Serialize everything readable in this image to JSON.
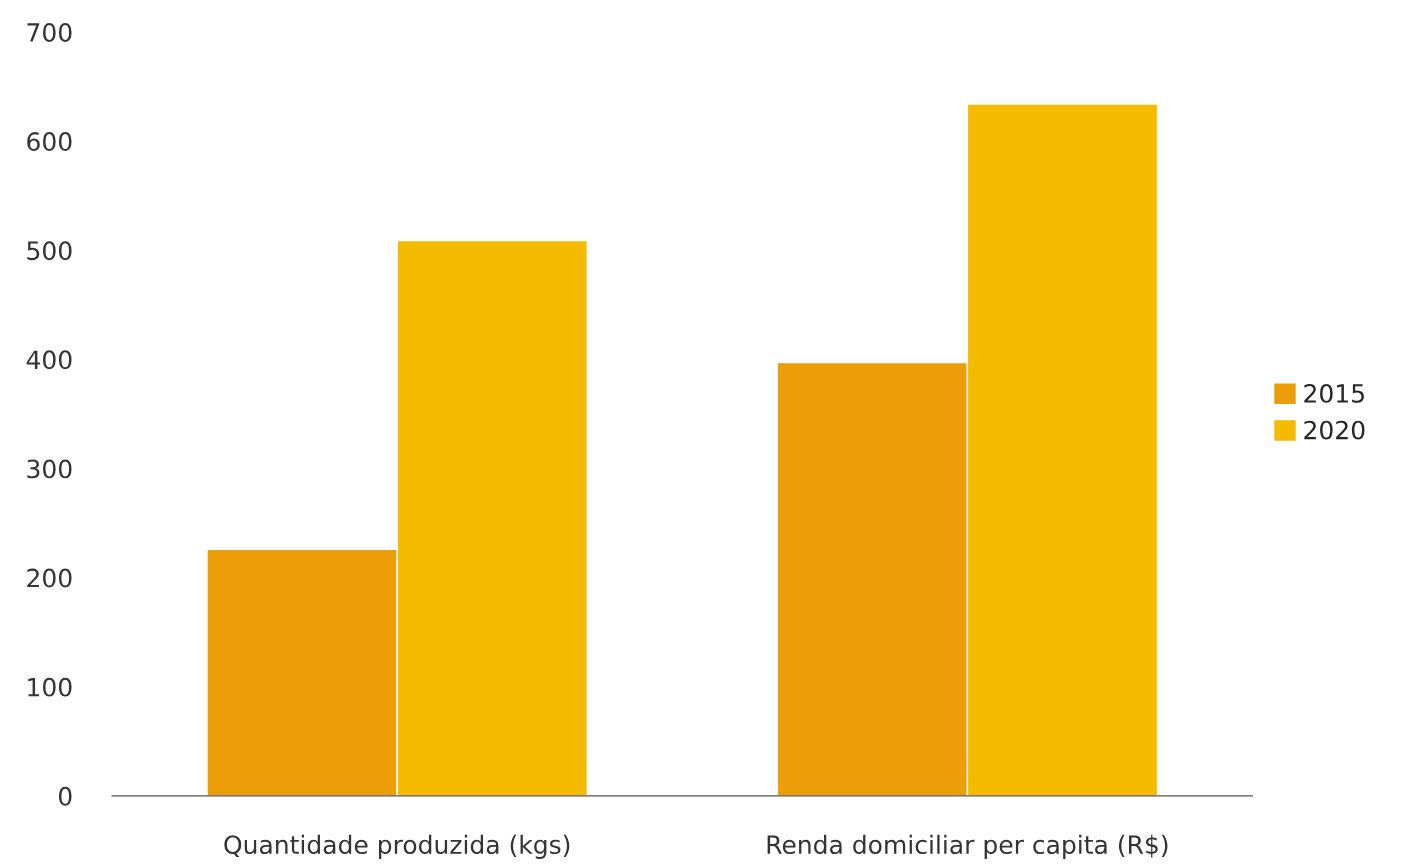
{
  "chart_data": {
    "type": "bar",
    "categories": [
      "Quantidade produzida (kgs)",
      "Renda domiciliar per capita (R$)"
    ],
    "series": [
      {
        "name": "2015",
        "color": "#eb9e07",
        "values": [
          226,
          397
        ]
      },
      {
        "name": "2020",
        "color": "#f4bb00",
        "values": [
          509,
          634
        ]
      }
    ],
    "ylim": [
      0,
      700
    ],
    "yticks": [
      0,
      100,
      200,
      300,
      400,
      500,
      600,
      700
    ],
    "grid": false,
    "legend": "right"
  }
}
